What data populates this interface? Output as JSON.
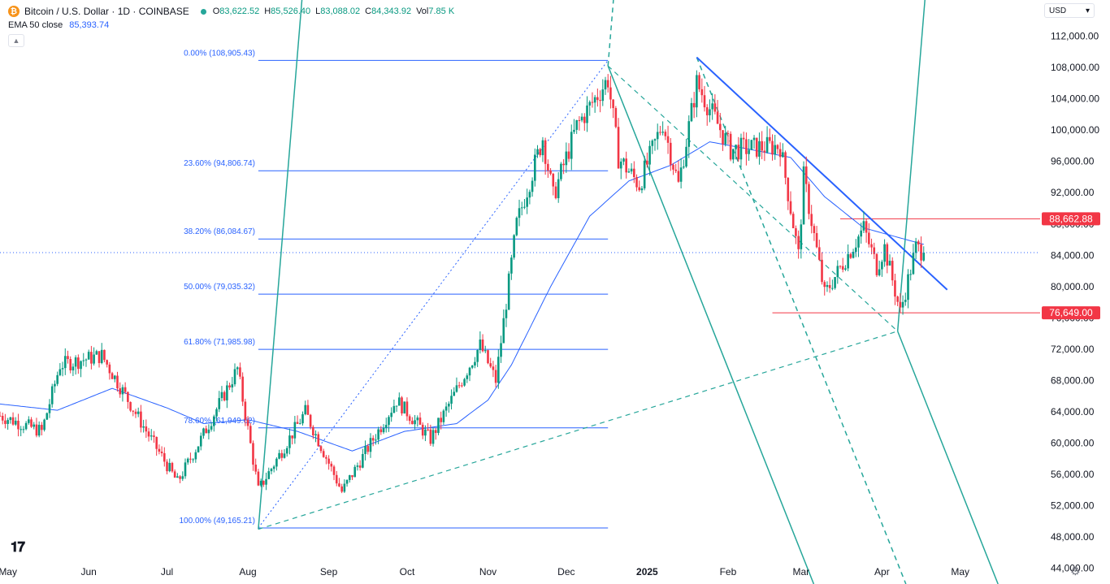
{
  "header": {
    "symbol": "Bitcoin / U.S. Dollar · 1D · COINBASE",
    "logo_glyph": "₿",
    "open_k": "O",
    "open": "83,622.52",
    "high_k": "H",
    "high": "85,526.40",
    "low_k": "L",
    "low": "83,088.02",
    "close_k": "C",
    "close": "84,343.92",
    "vol_k": "Vol",
    "vol": "7.85 K"
  },
  "indicator": {
    "label": "EMA 50 close",
    "value": "85,393.74",
    "color": "#2962ff"
  },
  "currency": "USD",
  "icons": {
    "logo": "tradingview-logo",
    "settings": "settings-gear-icon",
    "collapse": "chevron-up-icon"
  },
  "colors": {
    "up": "#089981",
    "down": "#f23645",
    "fib": "#2962ff",
    "pitchfork": "#26a69a",
    "hline": "#f23645",
    "trendline": "#2962ff"
  },
  "chart_data": {
    "type": "candlestick",
    "title": "Bitcoin / U.S. Dollar · 1D · COINBASE",
    "ylim": [
      42000,
      116000
    ],
    "y_ticks": [
      "112,000.00",
      "108,000.00",
      "104,000.00",
      "100,000.00",
      "96,000.00",
      "92,000.00",
      "88,000.00",
      "84,000.00",
      "80,000.00",
      "76,000.00",
      "72,000.00",
      "68,000.00",
      "64,000.00",
      "60,000.00",
      "56,000.00",
      "52,000.00",
      "48,000.00",
      "44,000.00"
    ],
    "x_ticks": [
      "May",
      "Jun",
      "Jul",
      "Aug",
      "Sep",
      "Oct",
      "Nov",
      "Dec",
      "2025",
      "Feb",
      "Mar",
      "Apr",
      "May"
    ],
    "last_price": 84343.92,
    "price_labels": [
      {
        "text": "88,662.88",
        "value": 88662.88
      },
      {
        "text": "76,649.00",
        "value": 76649
      }
    ],
    "horizontal_lines": [
      88662.88,
      76649
    ],
    "fibonacci": [
      {
        "label": "0.00% (108,905.43)",
        "value": 108905.43
      },
      {
        "label": "23.60% (94,806.74)",
        "value": 94806.74
      },
      {
        "label": "38.20% (86,084.67)",
        "value": 86084.67
      },
      {
        "label": "50.00% (79,035.32)",
        "value": 79035.32
      },
      {
        "label": "61.80% (71,985.98)",
        "value": 71985.98
      },
      {
        "label": "78.60% (61,949.62)",
        "value": 61949.62
      },
      {
        "label": "100.00% (49,165.21)",
        "value": 49165.21
      }
    ],
    "trendline": [
      [
        "2025-01-20",
        109300
      ],
      [
        "2025-04-26",
        79600
      ]
    ],
    "pitchfork_upper": {
      "pivot": [
        "2024-12-17",
        108200
      ],
      "points": [
        [
          "2024-08-05",
          49000
        ],
        [
          "2025-04-07",
          74300
        ]
      ]
    },
    "pitchfork_lower": {
      "pivot": [
        "2025-01-20",
        109300
      ],
      "points": [
        [
          "2024-12-17",
          108200
        ],
        [
          "2025-04-07",
          74300
        ]
      ]
    },
    "price_path": [
      [
        "2024-04-28",
        63500
      ],
      [
        "2024-05-14",
        61500
      ],
      [
        "2024-05-21",
        70000
      ],
      [
        "2024-06-06",
        71200
      ],
      [
        "2024-06-24",
        61000
      ],
      [
        "2024-07-05",
        55000
      ],
      [
        "2024-07-14",
        60500
      ],
      [
        "2024-07-28",
        69500
      ],
      [
        "2024-08-05",
        54000
      ],
      [
        "2024-08-23",
        64000
      ],
      [
        "2024-09-06",
        53800
      ],
      [
        "2024-09-27",
        65500
      ],
      [
        "2024-10-10",
        60500
      ],
      [
        "2024-10-29",
        72500
      ],
      [
        "2024-11-04",
        68000
      ],
      [
        "2024-11-12",
        88000
      ],
      [
        "2024-11-22",
        99000
      ],
      [
        "2024-11-26",
        91500
      ],
      [
        "2024-12-05",
        100500
      ],
      [
        "2024-12-17",
        106500
      ],
      [
        "2024-12-21",
        96500
      ],
      [
        "2024-12-29",
        93000
      ],
      [
        "2025-01-07",
        101000
      ],
      [
        "2025-01-13",
        93000
      ],
      [
        "2025-01-20",
        106000
      ],
      [
        "2025-02-02",
        97500
      ],
      [
        "2025-02-21",
        98000
      ],
      [
        "2025-02-28",
        84000
      ],
      [
        "2025-03-02",
        94000
      ],
      [
        "2025-03-10",
        79000
      ],
      [
        "2025-03-25",
        87500
      ],
      [
        "2025-03-30",
        82500
      ],
      [
        "2025-04-02",
        85000
      ],
      [
        "2025-04-08",
        76700
      ],
      [
        "2025-04-14",
        85000
      ],
      [
        "2025-04-17",
        84344
      ]
    ],
    "ema_path": [
      [
        "2024-04-28",
        65000
      ],
      [
        "2024-05-20",
        64200
      ],
      [
        "2024-06-10",
        67000
      ],
      [
        "2024-07-01",
        64500
      ],
      [
        "2024-07-15",
        62500
      ],
      [
        "2024-08-01",
        63000
      ],
      [
        "2024-08-20",
        61500
      ],
      [
        "2024-09-10",
        59000
      ],
      [
        "2024-09-30",
        61500
      ],
      [
        "2024-10-20",
        62500
      ],
      [
        "2024-11-01",
        65500
      ],
      [
        "2024-11-10",
        70000
      ],
      [
        "2024-11-25",
        80000
      ],
      [
        "2024-12-10",
        89000
      ],
      [
        "2024-12-25",
        93500
      ],
      [
        "2025-01-10",
        95500
      ],
      [
        "2025-01-25",
        98500
      ],
      [
        "2025-02-10",
        97500
      ],
      [
        "2025-02-25",
        96500
      ],
      [
        "2025-03-10",
        91500
      ],
      [
        "2025-03-25",
        87500
      ],
      [
        "2025-04-17",
        85394
      ]
    ]
  }
}
